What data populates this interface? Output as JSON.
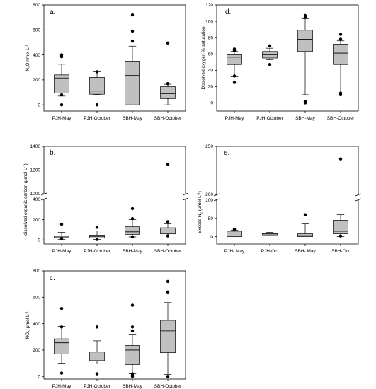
{
  "chart_data": [
    {
      "type": "box",
      "panel": "a.",
      "ylabel": "N2O nmol L-1",
      "ylabel_parts": {
        "a": "N",
        "b": "2",
        "c": "O nmol L",
        "d": "-1"
      },
      "categories": [
        "PJH-May",
        "PJH-October",
        "SBH-May",
        "SBH-October"
      ],
      "ylim": [
        -50,
        800
      ],
      "yticks": [
        0,
        200,
        400,
        600,
        800
      ],
      "boxes": [
        {
          "min": 70,
          "q1": 95,
          "median": 215,
          "q3": 240,
          "max": 325,
          "outliers": [
            0,
            80,
            385,
            400
          ]
        },
        {
          "min": 80,
          "q1": 85,
          "median": 110,
          "q3": 220,
          "max": 265,
          "outliers": [
            0,
            265
          ]
        },
        {
          "min": 0,
          "q1": 0,
          "median": 235,
          "q3": 350,
          "max": 470,
          "outliers": [
            510,
            590,
            720
          ]
        },
        {
          "min": 0,
          "q1": 50,
          "median": 90,
          "q3": 145,
          "max": 165,
          "outliers": [
            170,
            495
          ]
        }
      ]
    },
    {
      "type": "box",
      "panel": "b.",
      "ylabel": "dissolved organic carbon (μmol L-1)",
      "ylabel_parts": {
        "a": "dissolved organic carbon (μmol L",
        "b": "-1",
        "c": ")"
      },
      "categories": [
        "PJH-May",
        "PJH-October",
        "SBH-May",
        "SBH-October"
      ],
      "broken": true,
      "lower_ylim": [
        -40,
        400
      ],
      "lower_yticks": [
        0,
        200,
        400
      ],
      "upper_ylim": [
        1000,
        1400
      ],
      "upper_yticks": [
        1000,
        1200,
        1400
      ],
      "boxes": [
        {
          "min": 5,
          "q1": 20,
          "median": 30,
          "q3": 40,
          "max": 75,
          "outliers": [
            15,
            155
          ]
        },
        {
          "min": 5,
          "q1": 20,
          "median": 35,
          "q3": 48,
          "max": 90,
          "outliers": [
            5,
            125
          ]
        },
        {
          "min": 30,
          "q1": 55,
          "median": 80,
          "q3": 130,
          "max": 200,
          "outliers": [
            210,
            310,
            30
          ]
        },
        {
          "min": 40,
          "q1": 60,
          "median": 90,
          "q3": 120,
          "max": 160,
          "outliers": [
            180,
            40,
            1250
          ]
        }
      ]
    },
    {
      "type": "box",
      "panel": "c.",
      "ylabel": "NO3- μmol L-1",
      "ylabel_parts": {
        "a": "NO",
        "b": "3",
        "c": "-",
        "d": " μmol L",
        "e": "-1"
      },
      "categories": [
        "PJH-May",
        "PJH-October",
        "SBH-May",
        "SBH-October"
      ],
      "ylim": [
        -20,
        800
      ],
      "yticks": [
        0,
        200,
        400,
        600,
        800
      ],
      "boxes": [
        {
          "min": 100,
          "q1": 170,
          "median": 255,
          "q3": 285,
          "max": 380,
          "outliers": [
            25,
            375,
            515
          ]
        },
        {
          "min": 95,
          "q1": 120,
          "median": 170,
          "q3": 185,
          "max": 270,
          "outliers": [
            20,
            375
          ]
        },
        {
          "min": 20,
          "q1": 90,
          "median": 200,
          "q3": 235,
          "max": 320,
          "outliers": [
            0,
            10,
            20,
            345,
            375,
            540
          ]
        },
        {
          "min": 15,
          "q1": 180,
          "median": 345,
          "q3": 425,
          "max": 560,
          "outliers": [
            0,
            640,
            720
          ]
        }
      ]
    },
    {
      "type": "box",
      "panel": "d.",
      "ylabel": "Dissolved oxygen % saturation",
      "categories": [
        "PJH-May",
        "PJH-October",
        "SBH-May",
        "SBH-October"
      ],
      "ylim": [
        -10,
        120
      ],
      "yticks": [
        0,
        20,
        40,
        60,
        80,
        100,
        120
      ],
      "boxes": [
        {
          "min": 32,
          "q1": 47,
          "median": 56,
          "q3": 59,
          "max": 63,
          "outliers": [
            25,
            33,
            64,
            66
          ]
        },
        {
          "min": 53,
          "q1": 55,
          "median": 59,
          "q3": 63,
          "max": 67,
          "outliers": [
            47,
            70
          ]
        },
        {
          "min": 10,
          "q1": 63,
          "median": 78,
          "q3": 89,
          "max": 103,
          "outliers": [
            0,
            2,
            105,
            107
          ]
        },
        {
          "min": 12,
          "q1": 47,
          "median": 61,
          "q3": 72,
          "max": 76,
          "outliers": [
            10,
            12,
            78,
            84
          ]
        }
      ]
    },
    {
      "type": "box",
      "panel": "e.",
      "ylabel": "Excess N2 (μmol L-1)",
      "ylabel_parts": {
        "a": "Excess N",
        "b": "2",
        "c": " (μmol L",
        "d": "-1",
        "e": ")"
      },
      "categories": [
        "PJH- May",
        "PJH-Oct",
        "SBH- May",
        "SBH-Oct"
      ],
      "broken": true,
      "lower_ylim": [
        -20,
        100
      ],
      "lower_yticks": [
        0,
        50,
        100
      ],
      "upper_ylim": [
        200,
        250
      ],
      "upper_yticks": [
        200,
        250
      ],
      "boxes": [
        {
          "min": 0,
          "q1": 0,
          "median": 2,
          "q3": 15,
          "max": 18,
          "outliers": [
            20,
            20
          ]
        },
        {
          "min": 5,
          "q1": 5,
          "median": 8,
          "q3": 10,
          "max": 12,
          "outliers": []
        },
        {
          "min": 0,
          "q1": 0,
          "median": 3,
          "q3": 8,
          "max": 35,
          "outliers": [
            60
          ]
        },
        {
          "min": 0,
          "q1": 8,
          "median": 15,
          "q3": 45,
          "max": 60,
          "outliers": [
            2,
            237
          ]
        }
      ]
    }
  ]
}
